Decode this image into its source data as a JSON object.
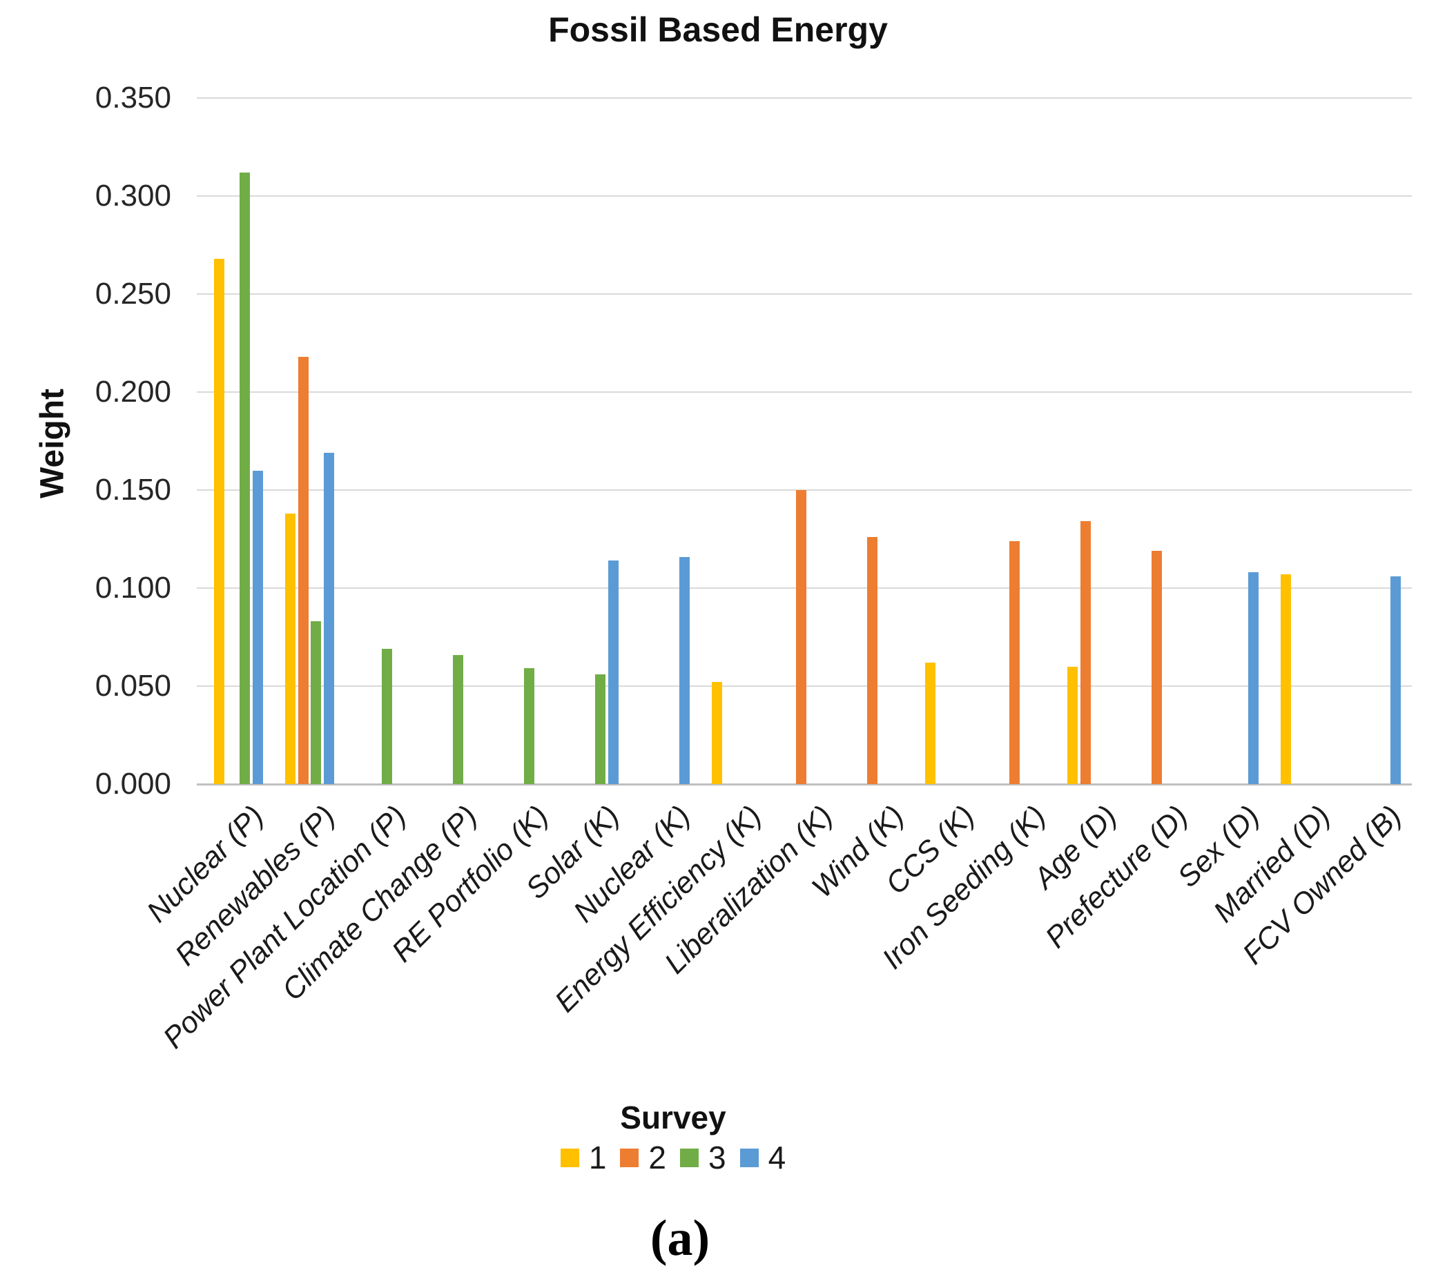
{
  "page": {
    "background": "#ffffff",
    "caption": "(a)"
  },
  "chart_data": {
    "type": "bar",
    "title": "Fossil Based Energy",
    "xlabel": "",
    "ylabel": "Weight",
    "ylim": [
      0,
      0.35
    ],
    "ytick_step": 0.05,
    "ytick_labels": [
      "0.350",
      "0.300",
      "0.250",
      "0.200",
      "0.150",
      "0.100",
      "0.050",
      "0.000"
    ],
    "grid": true,
    "legend_title": "Survey",
    "legend_position": "bottom",
    "categories": [
      "Nuclear (P)",
      "Renewables (P)",
      "Power Plant Location (P)",
      "Climate Change (P)",
      "RE Portfolio (K)",
      "Solar (K)",
      "Nuclear (K)",
      "Energy Efficiency (K)",
      "Liberalization (K)",
      "Wind (K)",
      "CCS (K)",
      "Iron Seeding (K)",
      "Age (D)",
      "Prefecture (D)",
      "Sex (D)",
      "Married (D)",
      "FCV Owned (B)"
    ],
    "series": [
      {
        "name": "1",
        "color": "#FFC000",
        "values": [
          0.268,
          0.138,
          0,
          0,
          0,
          0,
          0,
          0.052,
          0,
          0,
          0.062,
          0,
          0.06,
          0,
          0,
          0.107,
          0
        ]
      },
      {
        "name": "2",
        "color": "#ED7D31",
        "values": [
          0,
          0.218,
          0,
          0,
          0,
          0,
          0,
          0,
          0.15,
          0.126,
          0,
          0.124,
          0.134,
          0.119,
          0,
          0,
          0
        ]
      },
      {
        "name": "3",
        "color": "#70AD47",
        "values": [
          0.312,
          0.083,
          0.069,
          0.066,
          0.059,
          0.056,
          0,
          0,
          0,
          0,
          0,
          0,
          0,
          0,
          0,
          0,
          0
        ]
      },
      {
        "name": "4",
        "color": "#5B9BD5",
        "values": [
          0.16,
          0.169,
          0,
          0,
          0,
          0.114,
          0.116,
          0,
          0,
          0,
          0,
          0,
          0,
          0,
          0.108,
          0,
          0.106
        ]
      }
    ],
    "colors": {
      "gridline": "#d9d9d9",
      "axis_line": "#c0c0c0",
      "text": "#1a1a1a"
    }
  }
}
